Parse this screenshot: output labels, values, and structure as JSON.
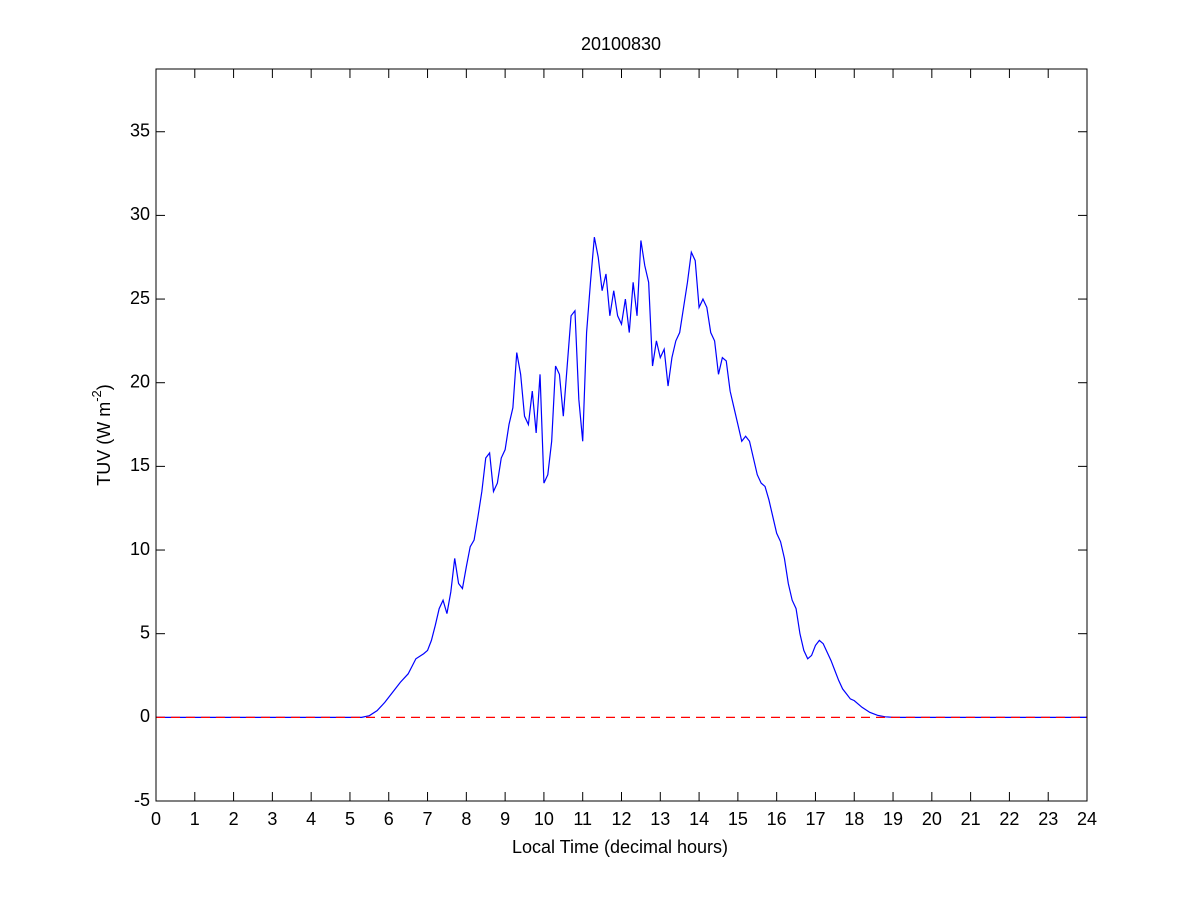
{
  "chart_data": {
    "type": "line",
    "title": "20100830",
    "xlabel": "Local Time (decimal hours)",
    "ylabel": [
      "TUV (W m",
      "-2",
      ")"
    ],
    "xlim": [
      0,
      24
    ],
    "xticks": [
      0,
      1,
      2,
      3,
      4,
      5,
      6,
      7,
      8,
      9,
      10,
      11,
      12,
      13,
      14,
      15,
      16,
      17,
      18,
      19,
      20,
      21,
      22,
      23,
      24
    ],
    "ylim": [
      -5,
      38.75
    ],
    "yticks": [
      -5,
      0,
      5,
      10,
      15,
      20,
      25,
      30,
      35
    ],
    "series": [
      {
        "color": "#0000ff",
        "dash": "solid",
        "x": [
          0,
          5.3,
          5.5,
          5.7,
          5.9,
          6.1,
          6.3,
          6.5,
          6.7,
          6.9,
          7.0,
          7.1,
          7.2,
          7.3,
          7.4,
          7.5,
          7.6,
          7.7,
          7.8,
          7.9,
          8.0,
          8.1,
          8.2,
          8.3,
          8.4,
          8.5,
          8.6,
          8.7,
          8.8,
          8.9,
          9.0,
          9.1,
          9.2,
          9.3,
          9.4,
          9.5,
          9.6,
          9.7,
          9.8,
          9.9,
          10.0,
          10.1,
          10.2,
          10.3,
          10.4,
          10.5,
          10.6,
          10.7,
          10.8,
          10.9,
          11.0,
          11.1,
          11.2,
          11.3,
          11.4,
          11.5,
          11.6,
          11.7,
          11.8,
          11.9,
          12.0,
          12.1,
          12.2,
          12.3,
          12.4,
          12.5,
          12.6,
          12.7,
          12.8,
          12.9,
          13.0,
          13.1,
          13.2,
          13.3,
          13.4,
          13.5,
          13.6,
          13.7,
          13.8,
          13.9,
          14.0,
          14.1,
          14.2,
          14.3,
          14.4,
          14.5,
          14.6,
          14.7,
          14.8,
          14.9,
          15.0,
          15.1,
          15.2,
          15.3,
          15.4,
          15.5,
          15.6,
          15.7,
          15.8,
          15.9,
          16.0,
          16.1,
          16.2,
          16.3,
          16.4,
          16.5,
          16.6,
          16.7,
          16.8,
          16.9,
          17.0,
          17.1,
          17.2,
          17.3,
          17.4,
          17.5,
          17.6,
          17.7,
          17.8,
          17.9,
          18.0,
          18.2,
          18.4,
          18.6,
          18.8,
          19.0,
          24
        ],
        "values": [
          0,
          0,
          0.1,
          0.4,
          0.9,
          1.5,
          2.1,
          2.6,
          3.5,
          3.8,
          4.0,
          4.6,
          5.5,
          6.5,
          7.0,
          6.2,
          7.5,
          9.5,
          8.0,
          7.7,
          9.0,
          10.2,
          10.6,
          12.0,
          13.5,
          15.5,
          15.8,
          13.5,
          14.0,
          15.5,
          16.0,
          17.5,
          18.5,
          21.8,
          20.5,
          18.0,
          17.5,
          19.5,
          17.0,
          20.5,
          14.0,
          14.5,
          16.5,
          21.0,
          20.5,
          18.0,
          21.0,
          24.0,
          24.3,
          19.0,
          16.5,
          23.0,
          26.0,
          28.7,
          27.5,
          25.5,
          26.5,
          24.0,
          25.5,
          24.0,
          23.5,
          25.0,
          23.0,
          26.0,
          24.0,
          28.5,
          27.0,
          26.0,
          21.0,
          22.5,
          21.5,
          22.0,
          19.8,
          21.5,
          22.5,
          23.0,
          24.5,
          26.0,
          27.8,
          27.3,
          24.5,
          25.0,
          24.5,
          23.0,
          22.5,
          20.5,
          21.5,
          21.3,
          19.5,
          18.5,
          17.5,
          16.5,
          16.8,
          16.5,
          15.5,
          14.5,
          14.0,
          13.8,
          13.0,
          12.0,
          11.0,
          10.5,
          9.5,
          8.0,
          7.0,
          6.5,
          5.0,
          4.0,
          3.5,
          3.7,
          4.3,
          4.6,
          4.4,
          3.9,
          3.4,
          2.8,
          2.2,
          1.7,
          1.4,
          1.1,
          1.0,
          0.6,
          0.3,
          0.12,
          0.03,
          0,
          0
        ]
      },
      {
        "color": "#ff0000",
        "dash": "dashed",
        "x": [
          0,
          24
        ],
        "values": [
          0,
          0
        ]
      }
    ]
  }
}
